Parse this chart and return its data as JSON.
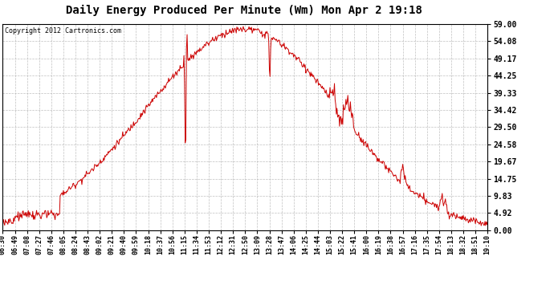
{
  "title": "Daily Energy Produced Per Minute (Wm) Mon Apr 2 19:18",
  "copyright": "Copyright 2012 Cartronics.com",
  "line_color": "#cc0000",
  "bg_color": "#ffffff",
  "plot_bg_color": "#ffffff",
  "grid_color": "#b0b0b0",
  "yticks": [
    0.0,
    4.92,
    9.83,
    14.75,
    19.67,
    24.58,
    29.5,
    34.42,
    39.33,
    44.25,
    49.17,
    54.08,
    59.0
  ],
  "ymax": 59.0,
  "ymin": 0.0,
  "xtick_labels": [
    "06:30",
    "06:49",
    "07:08",
    "07:27",
    "07:46",
    "08:05",
    "08:24",
    "08:43",
    "09:02",
    "09:21",
    "09:40",
    "09:59",
    "10:18",
    "10:37",
    "10:56",
    "11:15",
    "11:34",
    "11:53",
    "12:12",
    "12:31",
    "12:50",
    "13:09",
    "13:28",
    "13:47",
    "14:06",
    "14:25",
    "14:44",
    "15:03",
    "15:22",
    "15:41",
    "16:00",
    "16:19",
    "16:38",
    "16:57",
    "17:16",
    "17:35",
    "17:54",
    "18:13",
    "18:32",
    "18:51",
    "19:10"
  ]
}
